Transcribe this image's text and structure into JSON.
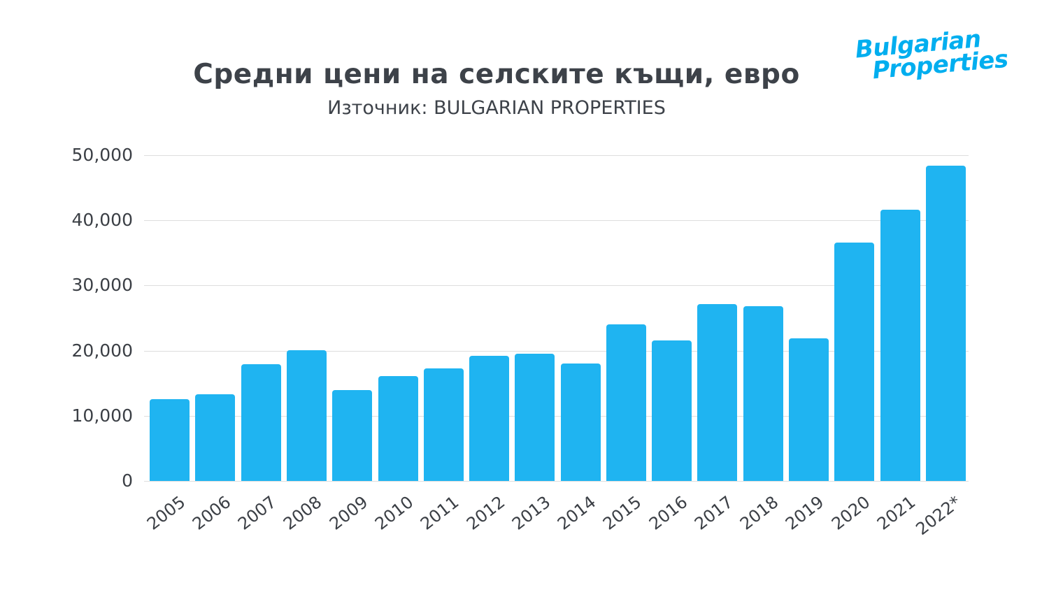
{
  "header": {
    "title": "Средни цени на селските къщи, евро",
    "subtitle": "Източник: BULGARIAN PROPERTIES"
  },
  "logo": {
    "line1": "Bulgarian",
    "line2": "Properties",
    "color": "#00aeef"
  },
  "chart_data": {
    "type": "bar",
    "title": "Средни цени на селските къщи, евро",
    "source": "Източник: BULGARIAN PROPERTIES",
    "categories": [
      "2005",
      "2006",
      "2007",
      "2008",
      "2009",
      "2010",
      "2011",
      "2012",
      "2013",
      "2014",
      "2015",
      "2016",
      "2017",
      "2018",
      "2019",
      "2020",
      "2021",
      "2022*"
    ],
    "values": [
      12600,
      13300,
      17900,
      20100,
      13900,
      16100,
      17300,
      19200,
      19500,
      18000,
      24000,
      21600,
      27200,
      26800,
      21900,
      36600,
      41600,
      48400
    ],
    "xlabel": "",
    "ylabel": "",
    "ylim": [
      0,
      50000
    ],
    "ytick_step": 10000,
    "yticks": [
      "0",
      "10,000",
      "20,000",
      "30,000",
      "40,000",
      "50,000"
    ],
    "bar_color": "#1fb4f1",
    "grid": true,
    "legend": "none"
  }
}
